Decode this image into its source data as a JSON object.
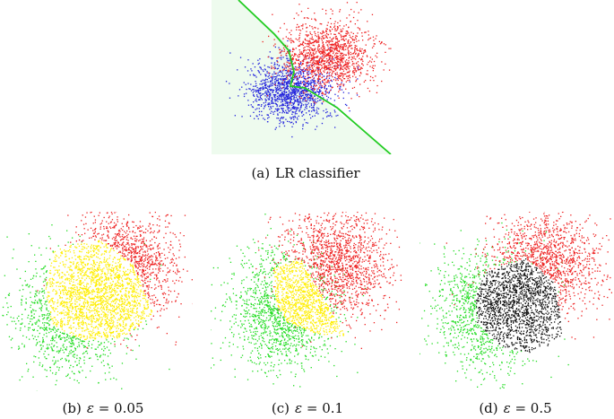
{
  "figure": {
    "panels": [
      {
        "id": "a",
        "label": "(a)",
        "caption": "LR classifier",
        "kind": "classifier",
        "colors": {
          "class1": "#2222dd",
          "class2": "#ee2222",
          "region": "#eefbee",
          "boundary": "#22cc22"
        }
      },
      {
        "id": "b",
        "label": "(b)",
        "epsilon_symbol": "ε",
        "epsilon_value": "= 0.05",
        "kind": "abstain",
        "colors": {
          "class1": "#22dd22",
          "class2": "#ee2222",
          "abstain": "#ffee00"
        }
      },
      {
        "id": "c",
        "label": "(c)",
        "epsilon_symbol": "ε",
        "epsilon_value": "= 0.1",
        "kind": "abstain",
        "colors": {
          "class1": "#22dd22",
          "class2": "#ee2222",
          "abstain": "#ffee00"
        }
      },
      {
        "id": "d",
        "label": "(d)",
        "epsilon_symbol": "ε",
        "epsilon_value": "= 0.5",
        "kind": "abstain",
        "colors": {
          "class1": "#22dd22",
          "class2": "#ee2222",
          "abstain": "#111111"
        }
      }
    ]
  }
}
